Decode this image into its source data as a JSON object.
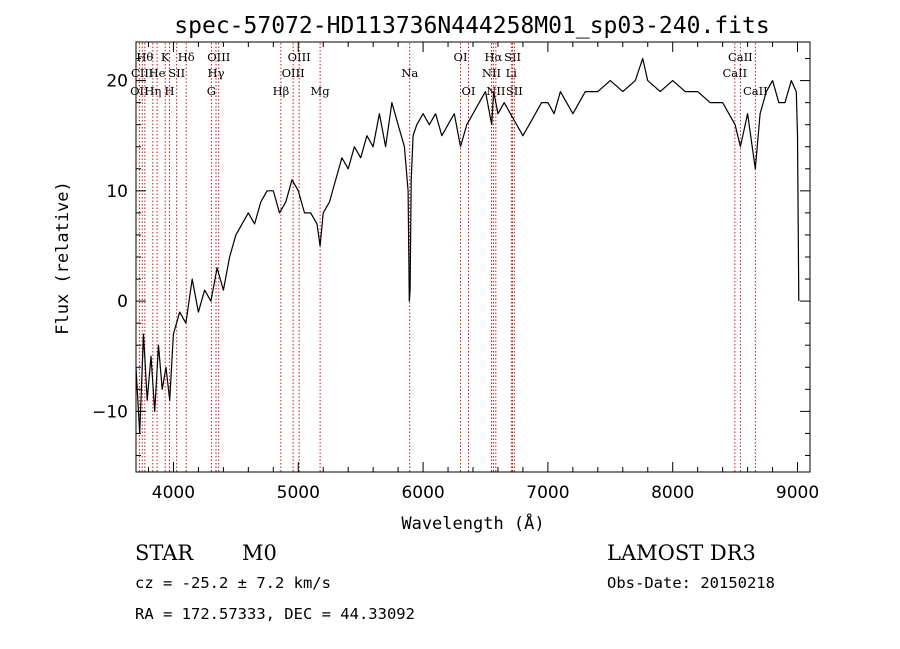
{
  "chart_data": {
    "type": "line",
    "title": "spec-57072-HD113736N444258M01_sp03-240.fits",
    "xlabel": "Wavelength (Å)",
    "ylabel": "Flux (relative)",
    "xlim": [
      3700,
      9100
    ],
    "ylim": [
      -15.5,
      23.5
    ],
    "xticks": [
      4000,
      5000,
      6000,
      7000,
      8000,
      9000
    ],
    "yticks": [
      -10,
      0,
      10,
      20
    ],
    "series": [
      {
        "name": "spectrum",
        "x": [
          3700,
          3730,
          3760,
          3790,
          3820,
          3850,
          3880,
          3910,
          3940,
          3970,
          4000,
          4050,
          4100,
          4150,
          4200,
          4250,
          4300,
          4350,
          4400,
          4450,
          4500,
          4550,
          4600,
          4650,
          4700,
          4750,
          4800,
          4850,
          4900,
          4950,
          5000,
          5050,
          5100,
          5150,
          5175,
          5200,
          5250,
          5300,
          5350,
          5400,
          5450,
          5500,
          5550,
          5600,
          5650,
          5700,
          5750,
          5800,
          5850,
          5880,
          5890,
          5896,
          5905,
          5920,
          5950,
          6000,
          6050,
          6100,
          6150,
          6200,
          6250,
          6300,
          6350,
          6400,
          6450,
          6500,
          6550,
          6565,
          6600,
          6650,
          6700,
          6750,
          6800,
          6850,
          6900,
          6950,
          7000,
          7050,
          7100,
          7150,
          7200,
          7300,
          7400,
          7500,
          7600,
          7700,
          7760,
          7800,
          7900,
          8000,
          8100,
          8200,
          8300,
          8400,
          8450,
          8500,
          8542,
          8600,
          8662,
          8700,
          8750,
          8800,
          8850,
          8900,
          8950,
          8990,
          9000,
          9010
        ],
        "y": [
          -6,
          -12,
          -3,
          -9,
          -5,
          -10,
          -4,
          -8,
          -6,
          -9,
          -3,
          -1,
          -2,
          2,
          -1,
          1,
          0,
          3,
          1,
          4,
          6,
          7,
          8,
          7,
          9,
          10,
          10,
          8,
          9,
          11,
          10,
          8,
          8,
          7,
          5,
          8,
          9,
          11,
          13,
          12,
          14,
          13,
          15,
          14,
          17,
          14,
          18,
          16,
          14,
          10,
          0,
          1,
          11,
          15,
          16,
          17,
          16,
          17,
          15,
          16,
          17,
          14,
          16,
          17,
          18,
          19,
          16,
          19,
          17,
          18,
          17,
          16,
          15,
          16,
          17,
          18,
          18,
          17,
          19,
          18,
          17,
          19,
          19,
          20,
          19,
          20,
          22,
          20,
          19,
          20,
          19,
          19,
          18,
          18,
          17,
          16,
          14,
          17,
          12,
          17,
          19,
          20,
          18,
          18,
          20,
          19,
          15,
          0
        ]
      }
    ],
    "line_markers": [
      {
        "wave": 3727,
        "label": "OII",
        "row": 2
      },
      {
        "wave": 3750,
        "label": "CIII",
        "row": 1
      },
      {
        "wave": 3771,
        "label": "Hθ",
        "row": 0
      },
      {
        "wave": 3835,
        "label": "Hη",
        "row": 2
      },
      {
        "wave": 3869,
        "label": "He",
        "row": 1
      },
      {
        "wave": 3934,
        "label": "K",
        "row": 0
      },
      {
        "wave": 3969,
        "label": "H",
        "row": 2
      },
      {
        "wave": 4026,
        "label": "SII",
        "row": 1
      },
      {
        "wave": 4102,
        "label": "Hδ",
        "row": 0
      },
      {
        "wave": 4304,
        "label": "G",
        "row": 2
      },
      {
        "wave": 4341,
        "label": "Hγ",
        "row": 1
      },
      {
        "wave": 4363,
        "label": "OIII",
        "row": 0
      },
      {
        "wave": 4861,
        "label": "Hβ",
        "row": 2
      },
      {
        "wave": 4959,
        "label": "OIII",
        "row": 1
      },
      {
        "wave": 5007,
        "label": "OIII",
        "row": 0
      },
      {
        "wave": 5175,
        "label": "Mg",
        "row": 2
      },
      {
        "wave": 5893,
        "label": "Na",
        "row": 1
      },
      {
        "wave": 6300,
        "label": "OI",
        "row": 0
      },
      {
        "wave": 6364,
        "label": "OI",
        "row": 2
      },
      {
        "wave": 6548,
        "label": "NII",
        "row": 1
      },
      {
        "wave": 6563,
        "label": "Hα",
        "row": 0
      },
      {
        "wave": 6583,
        "label": "NII",
        "row": 2
      },
      {
        "wave": 6707,
        "label": "Li",
        "row": 1
      },
      {
        "wave": 6717,
        "label": "SII",
        "row": 0
      },
      {
        "wave": 6731,
        "label": "SII",
        "row": 2
      },
      {
        "wave": 8498,
        "label": "CaII",
        "row": 1
      },
      {
        "wave": 8542,
        "label": "CaII",
        "row": 0
      },
      {
        "wave": 8662,
        "label": "CaII",
        "row": 2
      }
    ]
  },
  "footer": {
    "class_label": "STAR",
    "subclass_label": "M0",
    "survey_label": "LAMOST DR3",
    "cz_text": "cz = -25.2 ± 7.2 km/s",
    "obs_date_text": "Obs-Date: 20150218",
    "coords_text": "RA = 172.57333, DEC =  44.33092"
  }
}
